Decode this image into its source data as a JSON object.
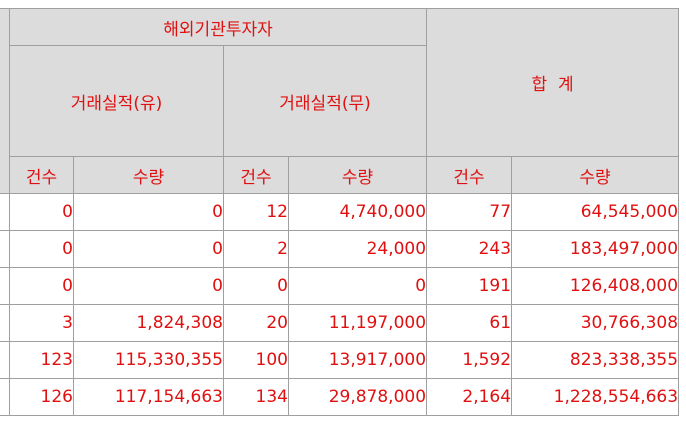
{
  "header": {
    "group_foreign": "해외기관투자자",
    "total": "합  계",
    "sub_yu": "거래실적(유)",
    "sub_mu": "거래실적(무)",
    "col_count": "건수",
    "col_qty": "수량"
  },
  "rows": [
    [
      "0",
      "0",
      "12",
      "4,740,000",
      "77",
      "64,545,000"
    ],
    [
      "0",
      "0",
      "2",
      "24,000",
      "243",
      "183,497,000"
    ],
    [
      "0",
      "0",
      "0",
      "0",
      "191",
      "126,408,000"
    ],
    [
      "3",
      "1,824,308",
      "20",
      "11,197,000",
      "61",
      "30,766,308"
    ],
    [
      "123",
      "115,330,355",
      "100",
      "13,917,000",
      "1,592",
      "823,338,355"
    ],
    [
      "126",
      "117,154,663",
      "134",
      "29,878,000",
      "2,164",
      "1,228,554,663"
    ]
  ]
}
